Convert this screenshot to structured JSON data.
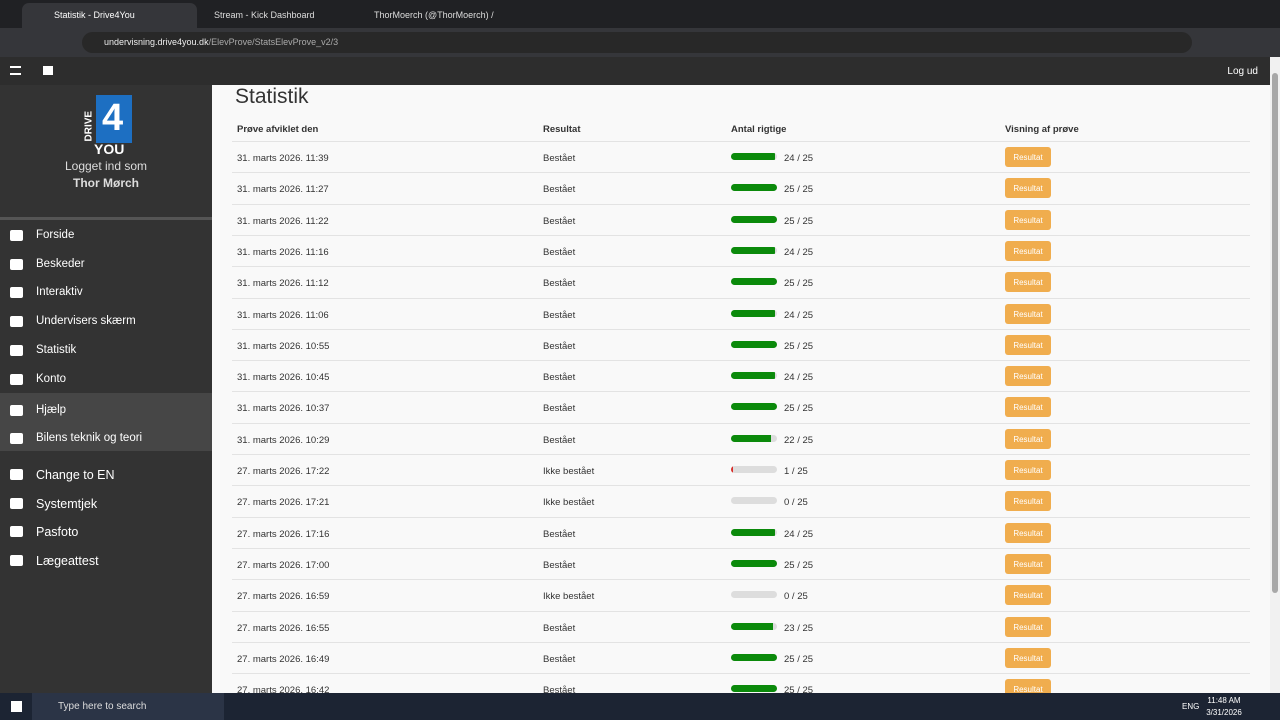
{
  "browser": {
    "tabs": [
      "Statistik - Drive4You",
      "Stream - Kick Dashboard",
      "ThorMoerch (@ThorMoerch) /"
    ],
    "url_host": "undervisning.drive4you.dk",
    "url_path": "/ElevProve/StatsElevProve_v2/3"
  },
  "header": {
    "logout": "Log ud"
  },
  "sidebar": {
    "logo": {
      "drive": "DRIVE",
      "four": "4",
      "you": "YOU"
    },
    "logged_in": "Logget ind som",
    "user": "Thor Mørch",
    "menu": [
      "Forside",
      "Beskeder",
      "Interaktiv",
      "Undervisers skærm",
      "Statistik",
      "Konto"
    ],
    "help": [
      "Hjælp",
      "Bilens teknik og teori"
    ],
    "extra": [
      "Change to EN",
      "Systemtjek",
      "Pasfoto",
      "Lægeattest"
    ]
  },
  "content": {
    "title": "Statistik",
    "table": {
      "columns": [
        "Prøve afviklet den",
        "Resultat",
        "Antal rigtige",
        "Visning af prøve"
      ],
      "max": 25,
      "rows": [
        {
          "date": "31. marts 2026. 11:39",
          "result": "Bestået",
          "correct": 24,
          "score": "24 / 25",
          "color": "#0b8a0b",
          "button": "Resultat"
        },
        {
          "date": "31. marts 2026. 11:27",
          "result": "Bestået",
          "correct": 25,
          "score": "25 / 25",
          "color": "#0b8a0b",
          "button": "Resultat"
        },
        {
          "date": "31. marts 2026. 11:22",
          "result": "Bestået",
          "correct": 25,
          "score": "25 / 25",
          "color": "#0b8a0b",
          "button": "Resultat"
        },
        {
          "date": "31. marts 2026. 11:16",
          "result": "Bestået",
          "correct": 24,
          "score": "24 / 25",
          "color": "#0b8a0b",
          "button": "Resultat"
        },
        {
          "date": "31. marts 2026. 11:12",
          "result": "Bestået",
          "correct": 25,
          "score": "25 / 25",
          "color": "#0b8a0b",
          "button": "Resultat"
        },
        {
          "date": "31. marts 2026. 11:06",
          "result": "Bestået",
          "correct": 24,
          "score": "24 / 25",
          "color": "#0b8a0b",
          "button": "Resultat"
        },
        {
          "date": "31. marts 2026. 10:55",
          "result": "Bestået",
          "correct": 25,
          "score": "25 / 25",
          "color": "#0b8a0b",
          "button": "Resultat"
        },
        {
          "date": "31. marts 2026. 10:45",
          "result": "Bestået",
          "correct": 24,
          "score": "24 / 25",
          "color": "#0b8a0b",
          "button": "Resultat"
        },
        {
          "date": "31. marts 2026. 10:37",
          "result": "Bestået",
          "correct": 25,
          "score": "25 / 25",
          "color": "#0b8a0b",
          "button": "Resultat"
        },
        {
          "date": "31. marts 2026. 10:29",
          "result": "Bestået",
          "correct": 22,
          "score": "22 / 25",
          "color": "#0b8a0b",
          "button": "Resultat"
        },
        {
          "date": "27. marts 2026. 17:22",
          "result": "Ikke bestået",
          "correct": 1,
          "score": "1 / 25",
          "color": "#d9302c",
          "button": "Resultat"
        },
        {
          "date": "27. marts 2026. 17:21",
          "result": "Ikke bestået",
          "correct": 0,
          "score": "0 / 25",
          "color": "#d9302c",
          "button": "Resultat"
        },
        {
          "date": "27. marts 2026. 17:16",
          "result": "Bestået",
          "correct": 24,
          "score": "24 / 25",
          "color": "#0b8a0b",
          "button": "Resultat"
        },
        {
          "date": "27. marts 2026. 17:00",
          "result": "Bestået",
          "correct": 25,
          "score": "25 / 25",
          "color": "#0b8a0b",
          "button": "Resultat"
        },
        {
          "date": "27. marts 2026. 16:59",
          "result": "Ikke bestået",
          "correct": 0,
          "score": "0 / 25",
          "color": "#d9302c",
          "button": "Resultat"
        },
        {
          "date": "27. marts 2026. 16:55",
          "result": "Bestået",
          "correct": 23,
          "score": "23 / 25",
          "color": "#0b8a0b",
          "button": "Resultat"
        },
        {
          "date": "27. marts 2026. 16:49",
          "result": "Bestået",
          "correct": 25,
          "score": "25 / 25",
          "color": "#0b8a0b",
          "button": "Resultat"
        },
        {
          "date": "27. marts 2026. 16:42",
          "result": "Bestået",
          "correct": 25,
          "score": "25 / 25",
          "color": "#0b8a0b",
          "button": "Resultat"
        }
      ]
    }
  },
  "taskbar": {
    "search": "Type here to search",
    "lang": "ENG",
    "time": "11:48 AM",
    "date": "3/31/2026"
  }
}
